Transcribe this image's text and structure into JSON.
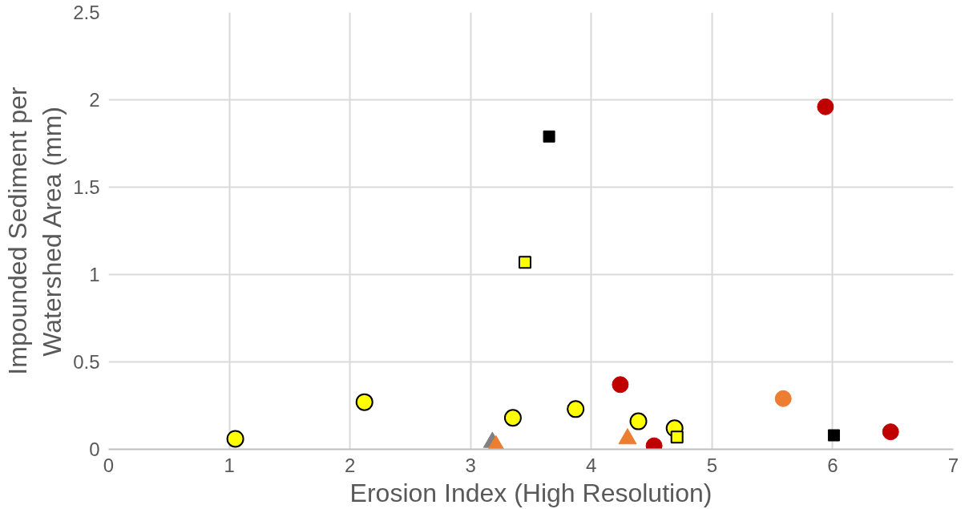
{
  "chart_data": {
    "type": "scatter",
    "xlabel": "Erosion Index (High Resolution)",
    "ylabel": "Impounded Sediment per Watershed Area (mm)",
    "xlim": [
      0,
      7
    ],
    "ylim": [
      0,
      2.5
    ],
    "xticks": [
      0,
      1,
      2,
      3,
      4,
      5,
      6,
      7
    ],
    "yticks": [
      0,
      0.5,
      1,
      1.5,
      2,
      2.5
    ],
    "grid": true,
    "series": [
      {
        "color": "#ffff00",
        "marker": "circle",
        "x": [
          1.05,
          2.12,
          3.35,
          3.87,
          4.39,
          4.69
        ],
        "values": [
          0.06,
          0.27,
          0.18,
          0.23,
          0.16,
          0.12
        ]
      },
      {
        "color": "#c00000",
        "marker": "circle",
        "x": [
          4.24,
          4.52,
          5.94,
          6.48
        ],
        "values": [
          0.37,
          0.02,
          1.96,
          0.1
        ]
      },
      {
        "color": "#ed7d31",
        "marker": "circle",
        "x": [
          5.59
        ],
        "values": [
          0.29
        ]
      },
      {
        "color": "#808080",
        "marker": "triangle",
        "x": [
          3.18
        ],
        "values": [
          0.04
        ]
      },
      {
        "color": "#ed7d31",
        "marker": "triangle",
        "x": [
          3.21,
          4.3
        ],
        "values": [
          0.02,
          0.06
        ]
      },
      {
        "color": "#000000",
        "marker": "square",
        "x": [
          3.65,
          6.01
        ],
        "values": [
          1.79,
          0.08
        ]
      },
      {
        "color": "#ffff00",
        "marker": "square",
        "x": [
          3.45,
          4.71
        ],
        "values": [
          1.07,
          0.07
        ]
      }
    ]
  }
}
